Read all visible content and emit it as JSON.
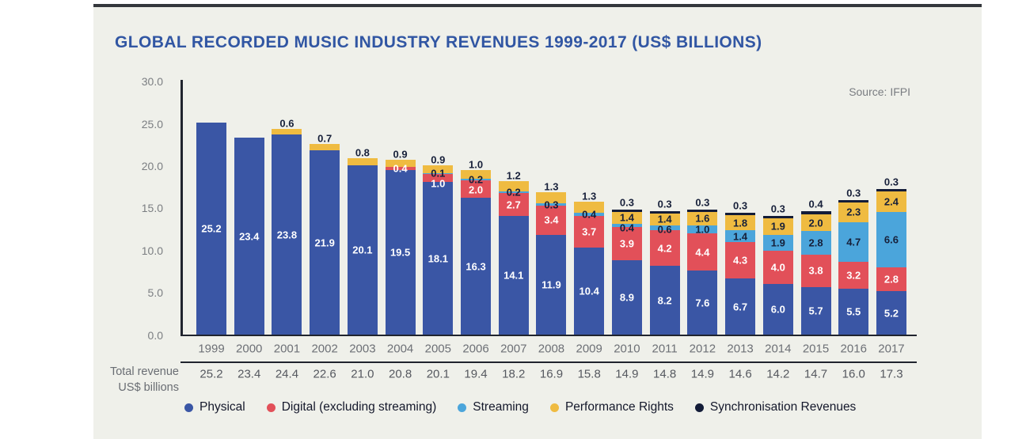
{
  "total_row": {
    "label_lines": [
      "Total revenue",
      "US$ billions"
    ],
    "values": [
      "25.2",
      "23.4",
      "24.4",
      "22.6",
      "21.0",
      "20.8",
      "20.1",
      "19.4",
      "18.2",
      "16.9",
      "15.8",
      "14.9",
      "14.8",
      "14.9",
      "14.6",
      "14.2",
      "14.7",
      "16.0",
      "17.3"
    ]
  },
  "colors": {
    "panel_bg": "#EFF0EA",
    "panel_top_border": "#34373C",
    "title": "#3156A3",
    "axis": "#20242E",
    "tick_text": "#7B7E82",
    "year_text": "#6D7076",
    "total_text": "#55585F",
    "legend_text": "#14182B"
  },
  "chart_data": {
    "type": "bar",
    "stacked": true,
    "title": "GLOBAL RECORDED MUSIC INDUSTRY REVENUES 1999-2017 (US$ BILLIONS)",
    "source": "Source: IFPI",
    "xlabel": "",
    "ylabel": "",
    "ylim": [
      0,
      30
    ],
    "grid": false,
    "legend_position": "bottom",
    "ytick_labels": [
      "30.0",
      "25.0",
      "20.0",
      "15.0",
      "10.0",
      "5.0",
      "0.0"
    ],
    "categories": [
      "1999",
      "2000",
      "2001",
      "2002",
      "2003",
      "2004",
      "2005",
      "2006",
      "2007",
      "2008",
      "2009",
      "2010",
      "2011",
      "2012",
      "2013",
      "2014",
      "2015",
      "2016",
      "2017"
    ],
    "series": [
      {
        "name": "Physical",
        "color": "#3A56A5",
        "label_color": "#FFFFFF",
        "values": [
          25.2,
          23.4,
          23.8,
          21.9,
          20.1,
          19.5,
          18.1,
          16.3,
          14.1,
          11.9,
          10.4,
          8.9,
          8.2,
          7.6,
          6.7,
          6.0,
          5.7,
          5.5,
          5.2
        ]
      },
      {
        "name": "Digital (excluding streaming)",
        "color": "#E25059",
        "label_color": "#FFFFFF",
        "values": [
          0,
          0,
          0,
          0,
          0,
          0.4,
          1.0,
          2.0,
          2.7,
          3.4,
          3.7,
          3.9,
          4.2,
          4.4,
          4.3,
          4.0,
          3.8,
          3.2,
          2.8
        ]
      },
      {
        "name": "Streaming",
        "color": "#4BA5DB",
        "label_color": "#17203A",
        "values": [
          0,
          0,
          0,
          0,
          0,
          0,
          0.1,
          0.2,
          0.2,
          0.3,
          0.4,
          0.4,
          0.6,
          1.0,
          1.4,
          1.9,
          2.8,
          4.7,
          6.6
        ]
      },
      {
        "name": "Performance Rights",
        "color": "#EFBB41",
        "label_color": "#17203A",
        "values": [
          0,
          0,
          0.6,
          0.7,
          0.8,
          0.9,
          0.9,
          1.0,
          1.2,
          1.3,
          1.3,
          1.4,
          1.4,
          1.6,
          1.8,
          1.9,
          2.0,
          2.3,
          2.4
        ]
      },
      {
        "name": "Synchronisation Revenues",
        "color": "#131C38",
        "label_color": "#17203A",
        "values": [
          0,
          0,
          0,
          0,
          0,
          0,
          0,
          0,
          0,
          0,
          0,
          0.3,
          0.3,
          0.3,
          0.3,
          0.3,
          0.4,
          0.3,
          0.3
        ]
      }
    ],
    "totals": [
      "25.2",
      "23.4",
      "24.4",
      "22.6",
      "21.0",
      "20.8",
      "20.1",
      "19.4",
      "18.2",
      "16.9",
      "15.8",
      "14.9",
      "14.8",
      "14.9",
      "14.6",
      "14.2",
      "14.7",
      "16.0",
      "17.3"
    ]
  }
}
